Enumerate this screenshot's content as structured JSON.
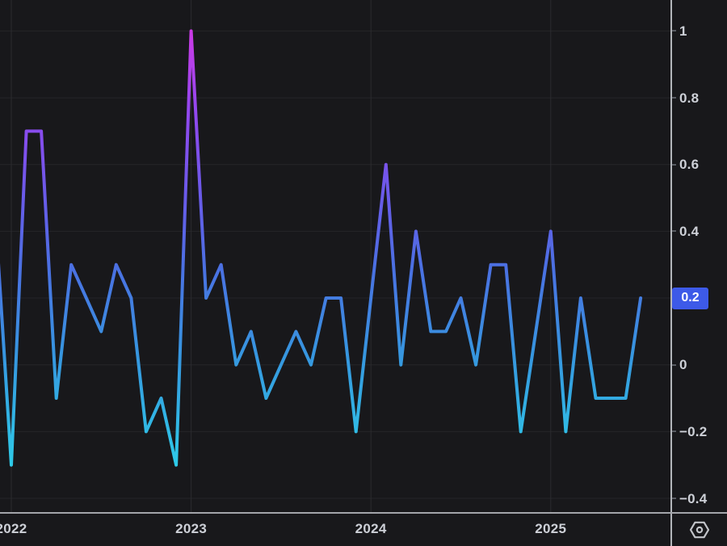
{
  "chart_data": {
    "type": "line",
    "title": "",
    "xlabel": "",
    "ylabel": "",
    "x": [
      "2021-12",
      "2022-01",
      "2022-02",
      "2022-03",
      "2022-04",
      "2022-05",
      "2022-06",
      "2022-07",
      "2022-08",
      "2022-09",
      "2022-10",
      "2022-11",
      "2022-12",
      "2023-01",
      "2023-02",
      "2023-03",
      "2023-04",
      "2023-05",
      "2023-06",
      "2023-07",
      "2023-08",
      "2023-09",
      "2023-10",
      "2023-11",
      "2023-12",
      "2024-01",
      "2024-02",
      "2024-03",
      "2024-04",
      "2024-05",
      "2024-06",
      "2024-07",
      "2024-08",
      "2024-09",
      "2024-10",
      "2024-11",
      "2024-12",
      "2025-01",
      "2025-02",
      "2025-03",
      "2025-04",
      "2025-05",
      "2025-06",
      "2025-07"
    ],
    "values": [
      0.4,
      -0.3,
      0.7,
      0.7,
      -0.1,
      0.3,
      0.2,
      0.1,
      0.3,
      0.2,
      -0.2,
      -0.1,
      -0.3,
      1.0,
      0.2,
      0.3,
      0.0,
      0.1,
      -0.1,
      0.0,
      0.1,
      0.0,
      0.2,
      0.2,
      -0.2,
      0.2,
      0.6,
      0.0,
      0.4,
      0.1,
      0.1,
      0.2,
      0.0,
      0.3,
      0.3,
      -0.2,
      0.1,
      0.4,
      -0.2,
      0.2,
      -0.1,
      -0.1,
      -0.1,
      0.2
    ],
    "y_ticks": [
      1,
      0.8,
      0.6,
      0.4,
      0.2,
      0,
      -0.2,
      -0.4
    ],
    "y_tick_labels": [
      "1",
      "0.8",
      "0.6",
      "0.4",
      "0.2",
      "0",
      "−0.2",
      "−0.4"
    ],
    "x_tick_labels": [
      "2022",
      "2023",
      "2024",
      "2025"
    ],
    "ylim": [
      -0.44,
      1.09
    ],
    "grid": true,
    "legend": "none",
    "last_price": "0.2"
  },
  "price_axis_panel": {
    "last_price_label": "0.2"
  },
  "corner": {
    "settings_icon": "gear-hexagon-icon"
  },
  "colors": {
    "background": "#18181b",
    "grid_horizontal": "#252529",
    "grid_vertical": "#2b2b2f",
    "axis_text": "#cdd0d7",
    "axis_separator": "#b3b5ba",
    "last_price_bg": "#3d5ae8",
    "last_price_text": "#ffffff",
    "line_gradient": [
      {
        "offset": 0.0,
        "color": "#cd3ae6"
      },
      {
        "offset": 0.18,
        "color": "#9447ef"
      },
      {
        "offset": 0.38,
        "color": "#6a5ae9"
      },
      {
        "offset": 0.55,
        "color": "#4a71e2"
      },
      {
        "offset": 0.75,
        "color": "#3697df"
      },
      {
        "offset": 1.0,
        "color": "#2ecbe8"
      }
    ]
  }
}
